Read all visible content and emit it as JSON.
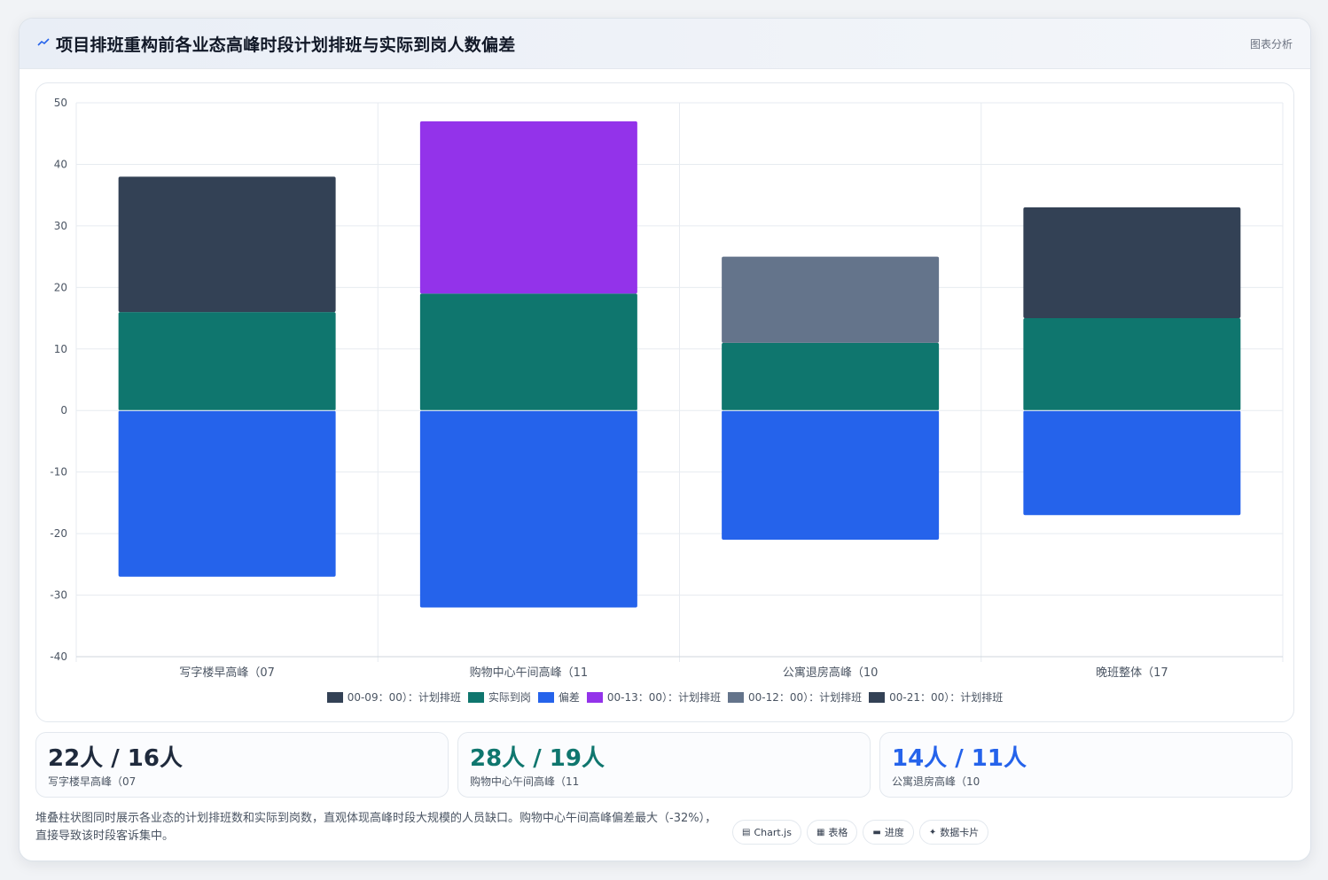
{
  "header": {
    "title": "项目排班重构前各业态高峰时段计划排班与实际到岗人数偏差",
    "tag": "图表分析"
  },
  "colors": {
    "plan_dark": "#334155",
    "actual": "#0f766e",
    "deviation": "#2563eb",
    "plan_purple": "#9333ea",
    "plan_gray": "#64748b"
  },
  "chart_data": {
    "type": "bar",
    "stacked": true,
    "categories": [
      "写字楼早高峰（07",
      "购物中心午间高峰（11",
      "公寓退房高峰（10",
      "晚班整体（17"
    ],
    "ylim": [
      -40,
      50
    ],
    "yticks": [
      50,
      40,
      30,
      20,
      10,
      0,
      -10,
      -20,
      -30,
      -40
    ],
    "grid": true,
    "legend_position": "bottom",
    "series": [
      {
        "name": "00-09：00）：计划排班",
        "color": "#334155",
        "values": [
          22,
          0,
          0,
          0
        ]
      },
      {
        "name": "实际到岗",
        "color": "#0f766e",
        "values": [
          16,
          19,
          11,
          15
        ]
      },
      {
        "name": "偏差",
        "color": "#2563eb",
        "values": [
          -27,
          -32,
          -21,
          -17
        ]
      },
      {
        "name": "00-13：00）：计划排班",
        "color": "#9333ea",
        "values": [
          0,
          28,
          0,
          0
        ]
      },
      {
        "name": "00-12：00）：计划排班",
        "color": "#64748b",
        "values": [
          0,
          0,
          14,
          0
        ]
      },
      {
        "name": "00-21：00）：计划排班",
        "color": "#334155",
        "values": [
          0,
          0,
          0,
          18
        ]
      }
    ],
    "stack_order": [
      [
        "实际到岗",
        "00-09：00）：计划排班"
      ],
      [
        "实际到岗",
        "00-13：00）：计划排班"
      ],
      [
        "实际到岗",
        "00-12：00）：计划排班"
      ],
      [
        "实际到岗",
        "00-21：00）：计划排班"
      ]
    ]
  },
  "stats": [
    {
      "value": "22人 / 16人",
      "label": "写字楼早高峰（07",
      "color": "#1f2a3c"
    },
    {
      "value": "28人 / 19人",
      "label": "购物中心午间高峰（11",
      "color": "#0f766e"
    },
    {
      "value": "14人 / 11人",
      "label": "公寓退房高峰（10",
      "color": "#2563eb"
    }
  ],
  "note": "堆叠柱状图同时展示各业态的计划排班数和实际到岗数，直观体现高峰时段大规模的人员缺口。购物中心午间高峰偏差最大（-32%），直接导致该时段客诉集中。",
  "chips": [
    {
      "icon": "▤",
      "icon_name": "chart-icon",
      "label": "Chart.js"
    },
    {
      "icon": "▦",
      "icon_name": "table-icon",
      "label": "表格"
    },
    {
      "icon": "▬",
      "icon_name": "progress-icon",
      "label": "进度"
    },
    {
      "icon": "✦",
      "icon_name": "sparkle-icon",
      "label": "数据卡片"
    }
  ]
}
